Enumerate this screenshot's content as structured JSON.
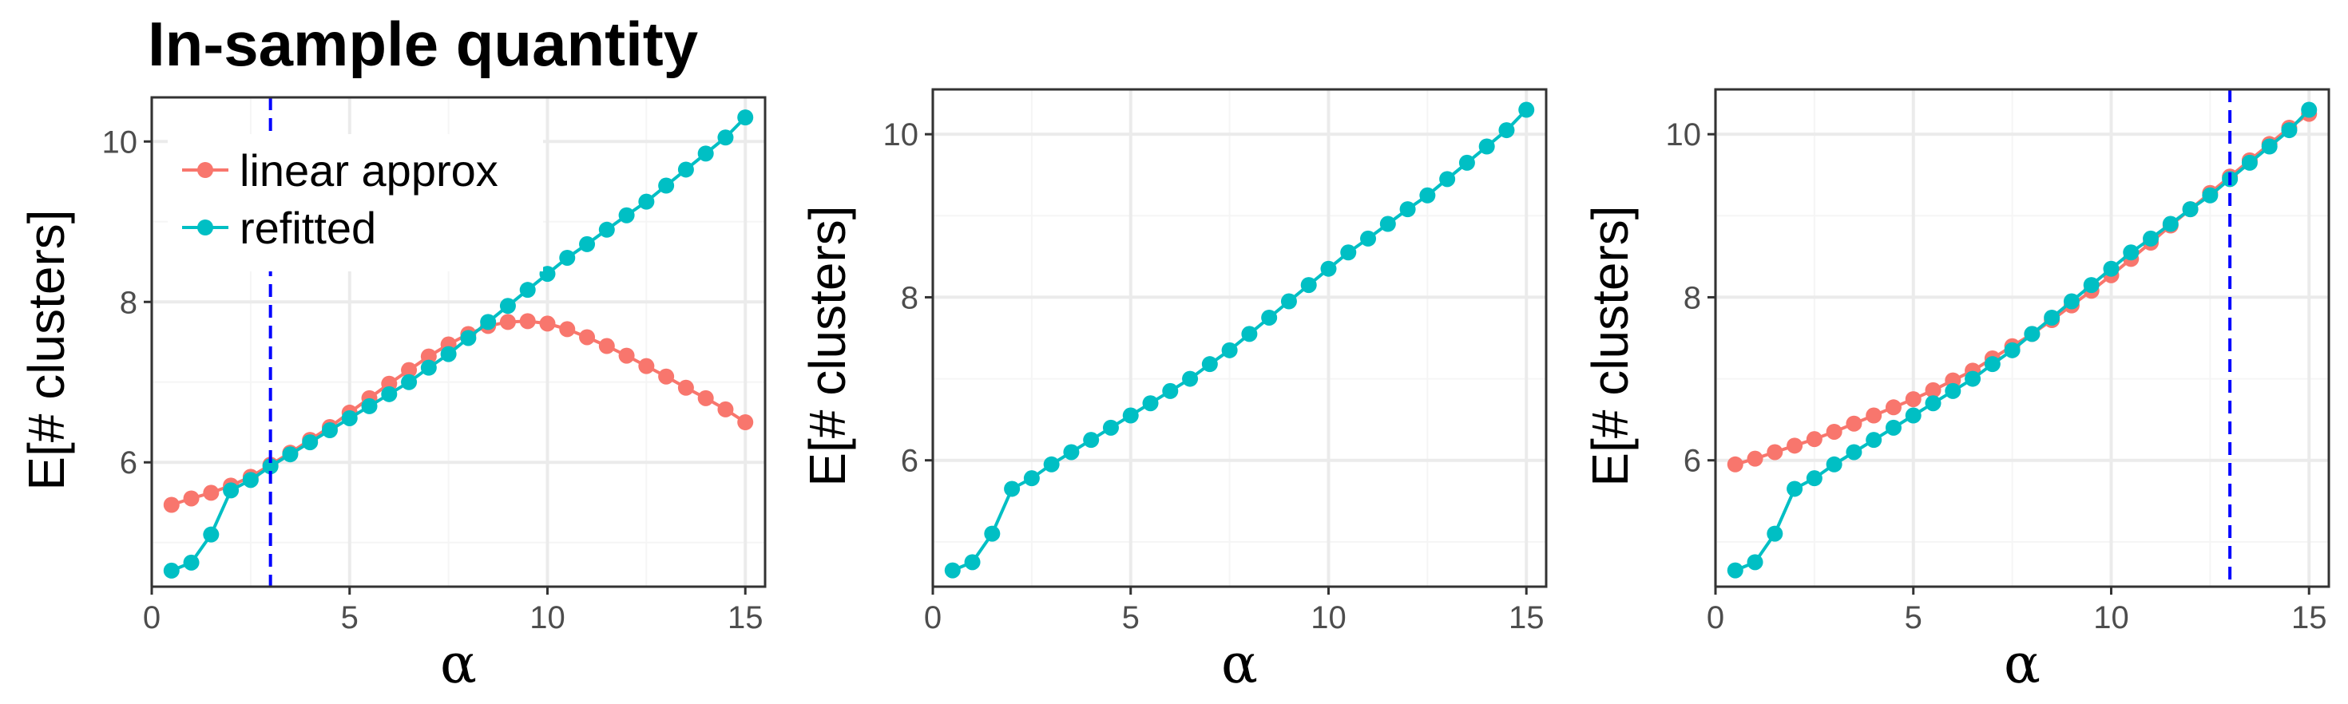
{
  "figure": {
    "title": "In-sample quantity"
  },
  "colors": {
    "linear": "#F8766D",
    "refitted": "#00BFC4",
    "vline": "#0000FF",
    "grid_major": "#EBEBEB",
    "grid_minor": "#F5F5F5",
    "panel_border": "#333333"
  },
  "legend": {
    "placement": "top-left of first panel",
    "entries": [
      "linear approx",
      "refitted"
    ]
  },
  "chart_data": [
    {
      "type": "line",
      "xlabel": "α",
      "ylabel": "E[# clusters]",
      "xlim": [
        0,
        15.5
      ],
      "ylim": [
        4.45,
        10.55
      ],
      "xticks": [
        0,
        5,
        10,
        15
      ],
      "yticks": [
        6,
        8,
        10
      ],
      "grid": true,
      "vline": 3,
      "x": [
        0.5,
        1,
        1.5,
        2,
        2.5,
        3,
        3.5,
        4,
        4.5,
        5,
        5.5,
        6,
        6.5,
        7,
        7.5,
        8,
        8.5,
        9,
        9.5,
        10,
        10.5,
        11,
        11.5,
        12,
        12.5,
        13,
        13.5,
        14,
        14.5,
        15
      ],
      "series": [
        {
          "name": "linear approx",
          "color_key": "linear",
          "values": [
            5.47,
            5.55,
            5.62,
            5.71,
            5.82,
            5.97,
            6.12,
            6.28,
            6.44,
            6.62,
            6.8,
            6.98,
            7.15,
            7.32,
            7.47,
            7.6,
            7.7,
            7.75,
            7.76,
            7.73,
            7.66,
            7.56,
            7.45,
            7.33,
            7.2,
            7.07,
            6.93,
            6.8,
            6.66,
            6.5
          ]
        },
        {
          "name": "refitted",
          "color_key": "refitted",
          "values": [
            4.65,
            4.75,
            5.1,
            5.65,
            5.78,
            5.95,
            6.1,
            6.25,
            6.4,
            6.55,
            6.7,
            6.85,
            7.0,
            7.18,
            7.35,
            7.55,
            7.75,
            7.95,
            8.15,
            8.35,
            8.55,
            8.72,
            8.9,
            9.08,
            9.25,
            9.45,
            9.65,
            9.85,
            10.05,
            10.3
          ]
        }
      ]
    },
    {
      "type": "line",
      "xlabel": "α",
      "ylabel": "E[# clusters]",
      "xlim": [
        0,
        15.5
      ],
      "ylim": [
        4.45,
        10.55
      ],
      "xticks": [
        0,
        5,
        10,
        15
      ],
      "yticks": [
        6,
        8,
        10
      ],
      "grid": true,
      "x": [
        0.5,
        1,
        1.5,
        2,
        2.5,
        3,
        3.5,
        4,
        4.5,
        5,
        5.5,
        6,
        6.5,
        7,
        7.5,
        8,
        8.5,
        9,
        9.5,
        10,
        10.5,
        11,
        11.5,
        12,
        12.5,
        13,
        13.5,
        14,
        14.5,
        15
      ],
      "series": [
        {
          "name": "refitted",
          "color_key": "refitted",
          "values": [
            4.65,
            4.75,
            5.1,
            5.65,
            5.78,
            5.95,
            6.1,
            6.25,
            6.4,
            6.55,
            6.7,
            6.85,
            7.0,
            7.18,
            7.35,
            7.55,
            7.75,
            7.95,
            8.15,
            8.35,
            8.55,
            8.72,
            8.9,
            9.08,
            9.25,
            9.45,
            9.65,
            9.85,
            10.05,
            10.3
          ]
        }
      ]
    },
    {
      "type": "line",
      "xlabel": "α",
      "ylabel": "E[# clusters]",
      "xlim": [
        0,
        15.5
      ],
      "ylim": [
        4.45,
        10.55
      ],
      "xticks": [
        0,
        5,
        10,
        15
      ],
      "yticks": [
        6,
        8,
        10
      ],
      "grid": true,
      "vline": 13,
      "x": [
        0.5,
        1,
        1.5,
        2,
        2.5,
        3,
        3.5,
        4,
        4.5,
        5,
        5.5,
        6,
        6.5,
        7,
        7.5,
        8,
        8.5,
        9,
        9.5,
        10,
        10.5,
        11,
        11.5,
        12,
        12.5,
        13,
        13.5,
        14,
        14.5,
        15
      ],
      "series": [
        {
          "name": "linear approx",
          "color_key": "linear",
          "values": [
            5.95,
            6.02,
            6.1,
            6.18,
            6.26,
            6.35,
            6.45,
            6.55,
            6.65,
            6.75,
            6.86,
            6.98,
            7.1,
            7.25,
            7.4,
            7.55,
            7.72,
            7.9,
            8.08,
            8.27,
            8.47,
            8.67,
            8.88,
            9.08,
            9.28,
            9.48,
            9.68,
            9.88,
            10.08,
            10.25
          ]
        },
        {
          "name": "refitted",
          "color_key": "refitted",
          "values": [
            4.65,
            4.75,
            5.1,
            5.65,
            5.78,
            5.95,
            6.1,
            6.25,
            6.4,
            6.55,
            6.7,
            6.85,
            7.0,
            7.18,
            7.35,
            7.55,
            7.75,
            7.95,
            8.15,
            8.35,
            8.55,
            8.72,
            8.9,
            9.08,
            9.25,
            9.45,
            9.65,
            9.85,
            10.05,
            10.3
          ]
        }
      ]
    }
  ]
}
